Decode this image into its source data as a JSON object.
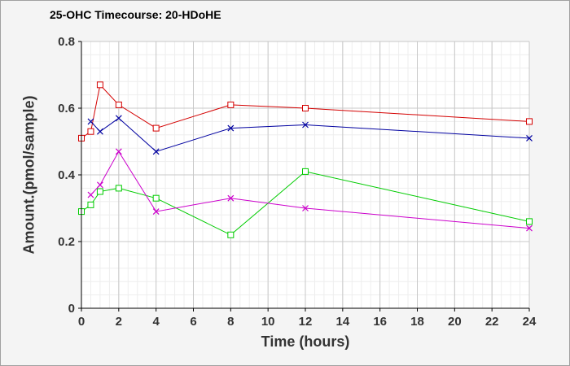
{
  "chart_data": {
    "type": "line",
    "title": "25-OHC Timecourse: 20-HDoHE",
    "xlabel": "Time (hours)",
    "ylabel": "Amount.(pmol/sample)",
    "xlim": [
      0,
      24
    ],
    "ylim": [
      0,
      0.8
    ],
    "xticks": [
      0,
      2,
      4,
      6,
      8,
      10,
      12,
      14,
      16,
      18,
      20,
      22,
      24
    ],
    "yticks": [
      0,
      0.2,
      0.4,
      0.6,
      0.8
    ],
    "ytick_labels": [
      "0",
      "0.2",
      "0.4",
      "0.6",
      "0.8"
    ],
    "grid": true,
    "legend": "none",
    "series": [
      {
        "color": "#d40000",
        "marker": "square",
        "x": [
          0,
          0.5,
          1,
          2,
          4,
          8,
          12,
          24
        ],
        "y": [
          0.51,
          0.53,
          0.67,
          0.61,
          0.54,
          0.61,
          0.6,
          0.56
        ]
      },
      {
        "color": "#0000a0",
        "marker": "x",
        "x": [
          0.5,
          1,
          2,
          4,
          8,
          12,
          24
        ],
        "y": [
          0.56,
          0.53,
          0.57,
          0.47,
          0.54,
          0.55,
          0.51
        ]
      },
      {
        "color": "#00cc00",
        "marker": "square",
        "x": [
          0,
          0.5,
          1,
          2,
          4,
          8,
          12,
          24
        ],
        "y": [
          0.29,
          0.31,
          0.35,
          0.36,
          0.33,
          0.22,
          0.41,
          0.26
        ]
      },
      {
        "color": "#cc00cc",
        "marker": "x",
        "x": [
          0.5,
          1,
          2,
          4,
          8,
          12,
          24
        ],
        "y": [
          0.34,
          0.37,
          0.47,
          0.29,
          0.33,
          0.3,
          0.24
        ]
      }
    ]
  }
}
